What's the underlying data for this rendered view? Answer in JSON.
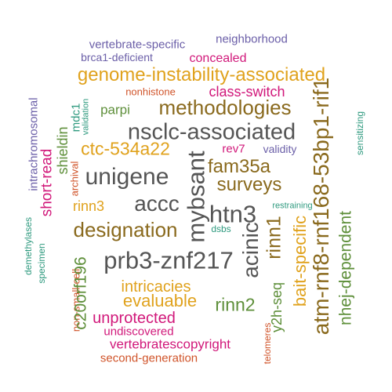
{
  "colors": {
    "purple": "#6b5fa8",
    "magenta": "#d1187a",
    "orange": "#e0a21d",
    "brown": "#8a6a1e",
    "gray": "#555555",
    "green": "#5e8f3a",
    "teal": "#2f9a7f",
    "red": "#d0542a"
  },
  "words": [
    {
      "text": "vertebrate-specific",
      "color": "purple"
    },
    {
      "text": "neighborhood",
      "color": "purple"
    },
    {
      "text": "brca1-deficient",
      "color": "purple"
    },
    {
      "text": "concealed",
      "color": "magenta"
    },
    {
      "text": "genome-instability-associated",
      "color": "orange"
    },
    {
      "text": "intrachromosomal",
      "color": "purple"
    },
    {
      "text": "nonhistone",
      "color": "red"
    },
    {
      "text": "class-switch",
      "color": "magenta"
    },
    {
      "text": "mdc1",
      "color": "teal"
    },
    {
      "text": "validation",
      "color": "teal"
    },
    {
      "text": "parpi",
      "color": "green"
    },
    {
      "text": "methodologies",
      "color": "brown"
    },
    {
      "text": "shieldin",
      "color": "green"
    },
    {
      "text": "nsclc-associated",
      "color": "gray"
    },
    {
      "text": "atm-rnf8-rnf168-53bp1-rif1",
      "color": "brown"
    },
    {
      "text": "sensitizing",
      "color": "teal"
    },
    {
      "text": "short-read",
      "color": "magenta"
    },
    {
      "text": "ctc-534a22",
      "color": "orange"
    },
    {
      "text": "rev7",
      "color": "magenta"
    },
    {
      "text": "validity",
      "color": "purple"
    },
    {
      "text": "archival",
      "color": "red"
    },
    {
      "text": "fam35a",
      "color": "brown"
    },
    {
      "text": "unigene",
      "color": "gray"
    },
    {
      "text": "mybsant",
      "color": "gray"
    },
    {
      "text": "surveys",
      "color": "brown"
    },
    {
      "text": "rinn3",
      "color": "orange"
    },
    {
      "text": "accc",
      "color": "gray"
    },
    {
      "text": "restraining",
      "color": "teal"
    },
    {
      "text": "htn3",
      "color": "gray"
    },
    {
      "text": "designation",
      "color": "brown"
    },
    {
      "text": "dsbs",
      "color": "teal"
    },
    {
      "text": "demethylases",
      "color": "teal"
    },
    {
      "text": "rinn1",
      "color": "brown"
    },
    {
      "text": "specimen",
      "color": "teal"
    },
    {
      "text": "acinic",
      "color": "gray"
    },
    {
      "text": "bait-specific",
      "color": "orange"
    },
    {
      "text": "nhej-dependent",
      "color": "green"
    },
    {
      "text": "non-small-cell",
      "color": "red"
    },
    {
      "text": "prb3-znf217",
      "color": "gray"
    },
    {
      "text": "c20orf196",
      "color": "green"
    },
    {
      "text": "intricacies",
      "color": "orange"
    },
    {
      "text": "y2h-seq",
      "color": "green"
    },
    {
      "text": "evaluable",
      "color": "orange"
    },
    {
      "text": "rinn2",
      "color": "green"
    },
    {
      "text": "unprotected",
      "color": "magenta"
    },
    {
      "text": "undiscovered",
      "color": "magenta"
    },
    {
      "text": "telomeres",
      "color": "red"
    },
    {
      "text": "vertebratescopyright",
      "color": "magenta"
    },
    {
      "text": "second-generation",
      "color": "red"
    }
  ]
}
